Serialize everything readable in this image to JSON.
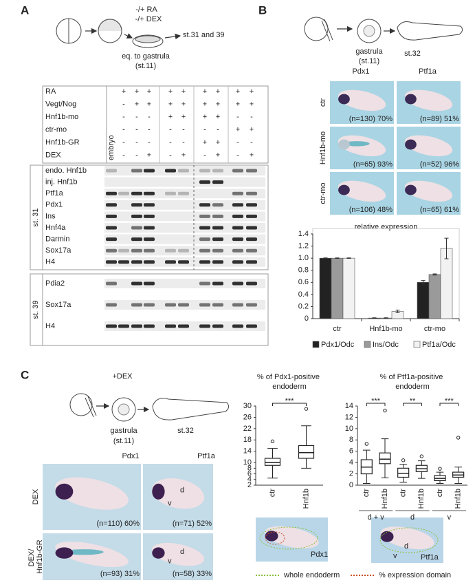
{
  "panel_a": {
    "letter": "A",
    "protocol": {
      "treatments": [
        "-/+ RA",
        "-/+ DEX"
      ],
      "culture": "eq. to gastrula",
      "culture_stage": "(st.11)",
      "endpoint": "st.31 and 39"
    },
    "embryo_label": "embryo",
    "conditions": [
      {
        "label": "RA",
        "marks": [
          "+",
          "+",
          "+",
          "+",
          "+",
          "+",
          "+",
          "+",
          "+"
        ]
      },
      {
        "label": "Vegt/Nog",
        "marks": [
          "-",
          "+",
          "+",
          "+",
          "+",
          "+",
          "+",
          "+",
          "+"
        ]
      },
      {
        "label": "Hnf1b-mo",
        "marks": [
          "-",
          "-",
          "-",
          "+",
          "+",
          "+",
          "+",
          "-",
          "-"
        ]
      },
      {
        "label": "ctr-mo",
        "marks": [
          "-",
          "-",
          "-",
          "-",
          "-",
          "-",
          "-",
          "+",
          "+"
        ]
      },
      {
        "label": "Hnf1b-GR",
        "marks": [
          "-",
          "-",
          "-",
          "-",
          "-",
          "+",
          "+",
          "-",
          "-"
        ]
      },
      {
        "label": "DEX",
        "marks": [
          "-",
          "-",
          "+",
          "-",
          "+",
          "-",
          "+",
          "-",
          "+"
        ]
      }
    ],
    "gels": [
      {
        "stage": "st. 31",
        "genes": [
          "endo. Hnf1b",
          "inj. Hnf1b",
          "Ptf1a",
          "Pdx1",
          "Ins",
          "Hnf4a",
          "Darmin",
          "Sox17a",
          "H4"
        ]
      },
      {
        "stage": "st. 39",
        "genes": [
          "Pdia2",
          "Sox17a",
          "H4"
        ]
      }
    ]
  },
  "panel_b": {
    "letter": "B",
    "protocol": {
      "stage1": "gastrula",
      "stage1_note": "(st.11)",
      "stage2": "st.32"
    },
    "columns": [
      "Pdx1",
      "Ptf1a"
    ],
    "rows": [
      {
        "label": "ctr",
        "captions": [
          "(n=130) 70%",
          "(n=89) 51%"
        ]
      },
      {
        "label": "Hnf1b-mo",
        "captions": [
          "(n=65) 93%",
          "(n=52) 96%"
        ]
      },
      {
        "label": "ctr-mo",
        "captions": [
          "(n=106) 48%",
          "(n=65) 61%"
        ]
      }
    ]
  },
  "panel_c": {
    "letter": "C",
    "protocol": {
      "treatment": "+DEX",
      "stage1": "gastrula",
      "stage1_note": "(st.11)",
      "stage2": "st.32"
    },
    "columns": [
      "Pdx1",
      "Ptf1a"
    ],
    "rows": [
      {
        "label": "DEX",
        "captions": [
          "(n=110) 60%",
          "(n=71) 52%"
        ]
      },
      {
        "label": "DEX/ Hnf1b-GR",
        "captions": [
          "(n=93) 31%",
          "(n=58) 33%"
        ]
      }
    ],
    "region_labels": [
      "d",
      "v"
    ],
    "example_labels": [
      "Pdx1",
      "Ptf1a"
    ],
    "legend": [
      "whole endoderm",
      "% expression domain"
    ]
  },
  "chart_data": [
    {
      "type": "bar",
      "title": "relative expression",
      "categories": [
        "ctr",
        "Hnf1b-mo",
        "ctr-mo"
      ],
      "series": [
        {
          "name": "Pdx1/Odc",
          "color": "#222222",
          "values": [
            1.0,
            0.01,
            0.6
          ],
          "errors": [
            0.004,
            0.004,
            0.03
          ]
        },
        {
          "name": "Ins/Odc",
          "color": "#9a9a9a",
          "values": [
            1.0,
            0.01,
            0.73
          ],
          "errors": [
            0.004,
            0.004,
            0.01
          ]
        },
        {
          "name": "Ptf1a/Odc",
          "color": "#f2f2f2",
          "values": [
            1.0,
            0.12,
            1.16
          ],
          "errors": [
            0.004,
            0.02,
            0.17
          ]
        }
      ],
      "ylim": [
        0,
        1.4
      ],
      "yticks": [
        0,
        0.2,
        0.4,
        0.6,
        0.8,
        {
          "value": 1,
          "label": "1.0"
        },
        1.2,
        1.4
      ]
    },
    {
      "type": "box",
      "title": "% of Pdx1-positive endoderm",
      "categories": [
        "ctr",
        "Hnf1b"
      ],
      "boxes": [
        {
          "whisker_low": 4.5,
          "q1": 9,
          "median": 10,
          "q3": 11.5,
          "whisker_high": 15,
          "outliers": [
            17.5
          ]
        },
        {
          "whisker_low": 8,
          "q1": 11.5,
          "median": 13.5,
          "q3": 16,
          "whisker_high": 23,
          "outliers": [
            29
          ]
        }
      ],
      "annotations": [
        "***"
      ],
      "ylim": [
        2,
        30
      ],
      "yticks": [
        2,
        4,
        6,
        8,
        10,
        14,
        18,
        22,
        26,
        30
      ]
    },
    {
      "type": "box",
      "title": "% of Ptf1a-positive endoderm",
      "categories": [
        "ctr",
        "Hnf1b",
        "ctr",
        "Hnf1b",
        "ctr",
        "Hnf1b"
      ],
      "groups": [
        "d + v",
        "d",
        "v"
      ],
      "boxes": [
        {
          "whisker_low": 0.3,
          "q1": 2,
          "median": 3.2,
          "q3": 4.5,
          "whisker_high": 6.2,
          "outliers": [
            7.3
          ]
        },
        {
          "whisker_low": 1.3,
          "q1": 3.8,
          "median": 4.6,
          "q3": 5.7,
          "whisker_high": 8.2,
          "outliers": [
            13.2
          ]
        },
        {
          "whisker_low": 0.5,
          "q1": 1.4,
          "median": 2.1,
          "q3": 3,
          "whisker_high": 3.7,
          "outliers": [
            4.4
          ]
        },
        {
          "whisker_low": 1.2,
          "q1": 2.4,
          "median": 2.9,
          "q3": 3.5,
          "whisker_high": 4.3,
          "outliers": [
            5.1
          ]
        },
        {
          "whisker_low": 0.3,
          "q1": 0.8,
          "median": 1.2,
          "q3": 1.7,
          "whisker_high": 2.3,
          "outliers": [
            2.9
          ]
        },
        {
          "whisker_low": 0.3,
          "q1": 1.4,
          "median": 1.8,
          "q3": 2.3,
          "whisker_high": 3.2,
          "outliers": [
            8.4
          ]
        }
      ],
      "annotations": [
        "***",
        "**",
        "***"
      ],
      "ylim": [
        0,
        14
      ],
      "yticks": [
        0,
        2,
        4,
        6,
        8,
        10,
        12,
        14
      ]
    }
  ]
}
